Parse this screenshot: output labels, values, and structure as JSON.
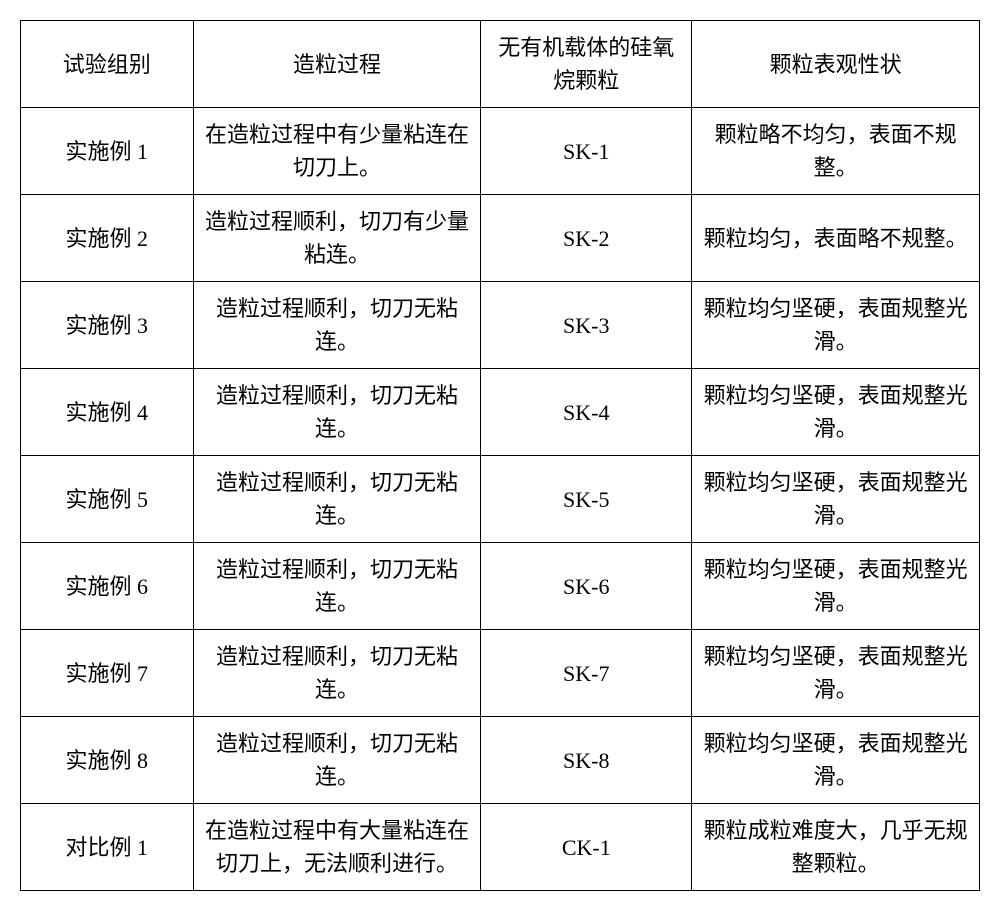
{
  "table": {
    "columns": [
      "试验组别",
      "造粒过程",
      "无有机载体的硅氧烷颗粒",
      "颗粒表观性状"
    ],
    "rows": [
      [
        "实施例 1",
        "在造粒过程中有少量粘连在切刀上。",
        "SK-1",
        "颗粒略不均匀，表面不规整。"
      ],
      [
        "实施例 2",
        "造粒过程顺利，切刀有少量粘连。",
        "SK-2",
        "颗粒均匀，表面略不规整。"
      ],
      [
        "实施例 3",
        "造粒过程顺利，切刀无粘连。",
        "SK-3",
        "颗粒均匀坚硬，表面规整光滑。"
      ],
      [
        "实施例 4",
        "造粒过程顺利，切刀无粘连。",
        "SK-4",
        "颗粒均匀坚硬，表面规整光滑。"
      ],
      [
        "实施例 5",
        "造粒过程顺利，切刀无粘连。",
        "SK-5",
        "颗粒均匀坚硬，表面规整光滑。"
      ],
      [
        "实施例 6",
        "造粒过程顺利，切刀无粘连。",
        "SK-6",
        "颗粒均匀坚硬，表面规整光滑。"
      ],
      [
        "实施例 7",
        "造粒过程顺利，切刀无粘连。",
        "SK-7",
        "颗粒均匀坚硬，表面规整光滑。"
      ],
      [
        "实施例 8",
        "造粒过程顺利，切刀无粘连。",
        "SK-8",
        "颗粒均匀坚硬，表面规整光滑。"
      ],
      [
        "对比例 1",
        "在造粒过程中有大量粘连在切刀上，无法顺利进行。",
        "CK-1",
        "颗粒成粒难度大，几乎无规整颗粒。"
      ]
    ],
    "border_color": "#000000",
    "background_color": "#ffffff",
    "text_color": "#000000",
    "font_size": 22,
    "col_widths_pct": [
      18,
      30,
      22,
      30
    ]
  }
}
